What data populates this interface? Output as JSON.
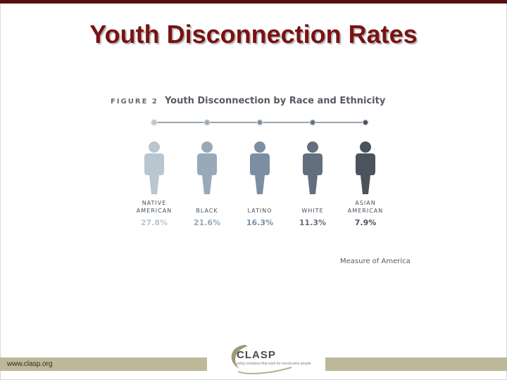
{
  "slide": {
    "title": "Youth Disconnection Rates",
    "footer_url": "www.clasp.org"
  },
  "logo": {
    "name": "CLASP",
    "tagline": "policy solutions that work for low-income people"
  },
  "colors": {
    "title": "#7a1212",
    "topbar": "#5a0d0d",
    "footer_bar": "#bdb998",
    "figure_ramp": [
      "#b8c6d2",
      "#98a9b9",
      "#7b8ea2",
      "#636f7c",
      "#4b535d"
    ]
  },
  "icons": {
    "figure": "person-icon",
    "timeline_node": "dot-icon"
  },
  "chart_data": {
    "type": "bar",
    "figure_label": "FIGURE 2",
    "title": "Youth Disconnection by Race and Ethnicity",
    "categories": [
      [
        "NATIVE",
        "AMERICAN"
      ],
      [
        "BLACK"
      ],
      [
        "LATINO"
      ],
      [
        "WHITE"
      ],
      [
        "ASIAN",
        "AMERICAN"
      ]
    ],
    "values": [
      27.8,
      21.6,
      16.3,
      11.3,
      7.9
    ],
    "value_labels": [
      "27.8%",
      "21.6%",
      "16.3%",
      "11.3%",
      "7.9%"
    ],
    "unit": "%",
    "source": "Measure of America"
  }
}
